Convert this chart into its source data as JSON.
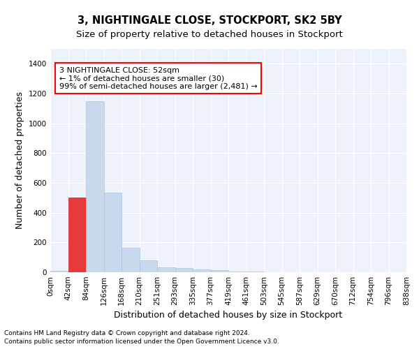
{
  "title": "3, NIGHTINGALE CLOSE, STOCKPORT, SK2 5BY",
  "subtitle": "Size of property relative to detached houses in Stockport",
  "xlabel": "Distribution of detached houses by size in Stockport",
  "ylabel": "Number of detached properties",
  "bar_color": "#c8d9ee",
  "bar_edge_color": "#aac4e0",
  "highlight_bar_color": "#e8393a",
  "highlight_bar_edge_color": "#c82020",
  "background_color": "#edf2fb",
  "grid_color": "#ffffff",
  "bins": [
    "0sqm",
    "42sqm",
    "84sqm",
    "126sqm",
    "168sqm",
    "210sqm",
    "251sqm",
    "293sqm",
    "335sqm",
    "377sqm",
    "419sqm",
    "461sqm",
    "503sqm",
    "545sqm",
    "587sqm",
    "629sqm",
    "670sqm",
    "712sqm",
    "754sqm",
    "796sqm",
    "838sqm"
  ],
  "values": [
    10,
    500,
    1150,
    535,
    165,
    80,
    35,
    28,
    18,
    15,
    5,
    3,
    2,
    1,
    1,
    0,
    0,
    0,
    0,
    0
  ],
  "highlight_bin_index": 1,
  "ylim": [
    0,
    1500
  ],
  "yticks": [
    0,
    200,
    400,
    600,
    800,
    1000,
    1200,
    1400
  ],
  "annotation_title": "3 NIGHTINGALE CLOSE: 52sqm",
  "annotation_line1": "← 1% of detached houses are smaller (30)",
  "annotation_line2": "99% of semi-detached houses are larger (2,481) →",
  "footer1": "Contains HM Land Registry data © Crown copyright and database right 2024.",
  "footer2": "Contains public sector information licensed under the Open Government Licence v3.0.",
  "title_fontsize": 10.5,
  "subtitle_fontsize": 9.5,
  "ylabel_fontsize": 9,
  "xlabel_fontsize": 9,
  "tick_fontsize": 7.5,
  "annotation_fontsize": 8,
  "footer_fontsize": 6.5
}
